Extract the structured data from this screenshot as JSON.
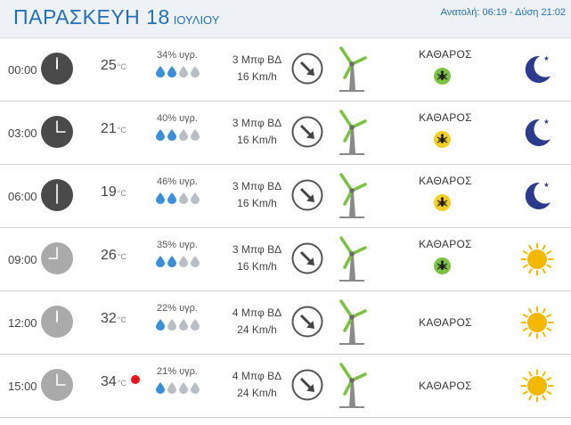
{
  "header": {
    "day": "ΠΑΡΑΣΚΕΥΗ 18",
    "month": "ΙΟΥΛΙΟΥ",
    "sun_info": "Ανατολή: 06:19 - Δύση 21:02"
  },
  "colors": {
    "title_blue": "#2470b8",
    "clock_night": "#4a4a4a",
    "clock_day": "#aaaaaa",
    "drop_filled": "#3a8fd8",
    "drop_empty": "#b8bec4",
    "pollen_green": "#7cc242",
    "pollen_yellow": "#f2cf22",
    "moon": "#2b3a8c",
    "sun": "#f5b800",
    "hot_dot": "#e8141b"
  },
  "rows": [
    {
      "time": "00:00",
      "temp": "25",
      "unit": "°C",
      "humidity": "34% υγρ.",
      "drops_filled": 2,
      "wind_bft": "3 Μπφ ΒΔ",
      "wind_kmh": "16 Km/h",
      "sky": "ΚΑΘΑΡΟΣ",
      "pollen": "green",
      "pollen_icon": "insect-icon",
      "icon": "moon-icon",
      "clock": "night",
      "hot": false
    },
    {
      "time": "03:00",
      "temp": "21",
      "unit": "°C",
      "humidity": "40% υγρ.",
      "drops_filled": 2,
      "wind_bft": "3 Μπφ ΒΔ",
      "wind_kmh": "16 Km/h",
      "sky": "ΚΑΘΑΡΟΣ",
      "pollen": "yellow",
      "pollen_icon": "insect-icon",
      "icon": "moon-icon",
      "clock": "night",
      "hot": false
    },
    {
      "time": "06:00",
      "temp": "19",
      "unit": "°C",
      "humidity": "46% υγρ.",
      "drops_filled": 2,
      "wind_bft": "3 Μπφ ΒΔ",
      "wind_kmh": "16 Km/h",
      "sky": "ΚΑΘΑΡΟΣ",
      "pollen": "yellow",
      "pollen_icon": "insect-icon",
      "icon": "moon-icon",
      "clock": "night",
      "hot": false
    },
    {
      "time": "09:00",
      "temp": "26",
      "unit": "°C",
      "humidity": "35% υγρ.",
      "drops_filled": 2,
      "wind_bft": "3 Μπφ ΒΔ",
      "wind_kmh": "16 Km/h",
      "sky": "ΚΑΘΑΡΟΣ",
      "pollen": "green",
      "pollen_icon": "insect-icon",
      "icon": "sun-icon",
      "clock": "day",
      "hot": false
    },
    {
      "time": "12:00",
      "temp": "32",
      "unit": "°C",
      "humidity": "22% υγρ.",
      "drops_filled": 1,
      "wind_bft": "4 Μπφ ΒΔ",
      "wind_kmh": "24 Km/h",
      "sky": "ΚΑΘΑΡΟΣ",
      "pollen": null,
      "icon": "sun-icon",
      "clock": "day",
      "hot": false
    },
    {
      "time": "15:00",
      "temp": "34",
      "unit": "°C",
      "humidity": "21% υγρ.",
      "drops_filled": 1,
      "wind_bft": "4 Μπφ ΒΔ",
      "wind_kmh": "24 Km/h",
      "sky": "ΚΑΘΑΡΟΣ",
      "pollen": null,
      "icon": "sun-icon",
      "clock": "day",
      "hot": true
    }
  ]
}
